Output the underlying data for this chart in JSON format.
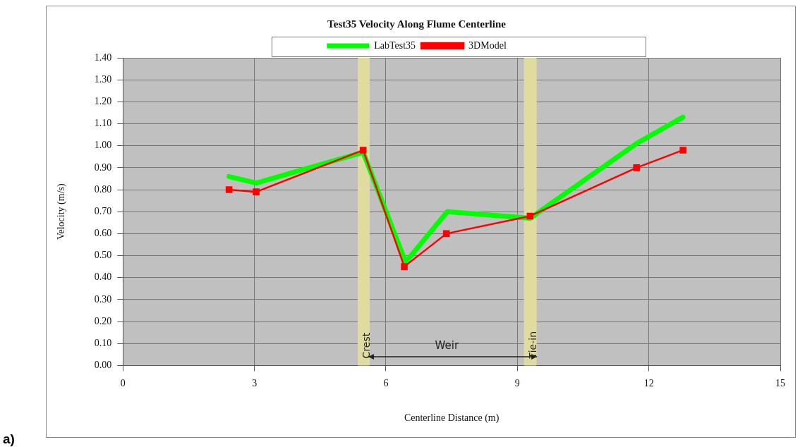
{
  "chart_data": {
    "type": "line",
    "title": "Test35 Velocity Along Flume Centerline",
    "xlabel": "Centerline Distance (m)",
    "ylabel": "Velocity (m/s)",
    "series": [
      {
        "name": "LabTest35",
        "color": "#00ff00",
        "marker": "none",
        "x": [
          2.42,
          3.04,
          5.48,
          6.45,
          7.4,
          9.29,
          11.72,
          12.78
        ],
        "values": [
          0.86,
          0.83,
          0.97,
          0.47,
          0.7,
          0.67,
          1.01,
          1.13
        ]
      },
      {
        "name": "3DModel",
        "color": "#ff0000",
        "marker": "square",
        "x": [
          2.42,
          3.04,
          5.48,
          6.42,
          7.38,
          9.29,
          11.72,
          12.78
        ],
        "values": [
          0.8,
          0.79,
          0.98,
          0.45,
          0.6,
          0.68,
          0.9,
          0.98
        ]
      }
    ],
    "xlim": [
      0,
      15
    ],
    "xticks": [
      0,
      3,
      6,
      9,
      12,
      15
    ],
    "ylim": [
      0,
      1.4
    ],
    "yticks": [
      {
        "value": 0,
        "label": "0.00"
      },
      {
        "value": 0.1,
        "label": "0.10"
      },
      {
        "value": 0.2,
        "label": "0.20"
      },
      {
        "value": 0.3,
        "label": "0.30"
      },
      {
        "value": 0.4,
        "label": "0.40"
      },
      {
        "value": 0.5,
        "label": "0.50"
      },
      {
        "value": 0.6,
        "label": "0.60"
      },
      {
        "value": 0.7,
        "label": "0.70"
      },
      {
        "value": 0.8,
        "label": "0.80"
      },
      {
        "value": 0.9,
        "label": "0.90"
      },
      {
        "value": 1.0,
        "label": "1.00"
      },
      {
        "value": 1.1,
        "label": "1.10"
      },
      {
        "value": 1.2,
        "label": "1.20"
      },
      {
        "value": 1.3,
        "label": "1.30"
      },
      {
        "value": 1.4,
        "label": "1.40"
      }
    ],
    "bands": [
      {
        "axis": "x",
        "from": 5.36,
        "to": 5.63,
        "label": "Crest",
        "color": "#e0dca0"
      },
      {
        "axis": "x",
        "from": 9.15,
        "to": 9.44,
        "label": "Tie-in",
        "color": "#e0dca0"
      }
    ],
    "annotations": [
      "Weir",
      "a)"
    ],
    "grid": true,
    "legend": "top",
    "line_style": "solid"
  }
}
